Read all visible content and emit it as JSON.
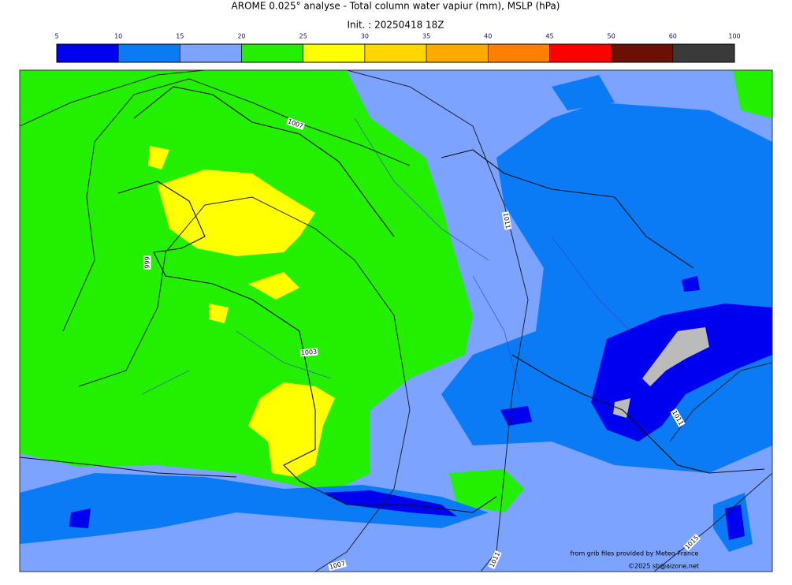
{
  "header": {
    "title": "AROME 0.025° analyse - Total column water vapiur (mm), MSLP (hPa)",
    "init": "Init. : 20250418 18Z"
  },
  "colorbar": {
    "ticks": [
      5,
      10,
      15,
      20,
      25,
      30,
      35,
      40,
      45,
      50,
      60,
      100
    ],
    "colors": [
      "#0000f0",
      "#0a7af5",
      "#7ba3ff",
      "#22f000",
      "#ffff00",
      "#ffd700",
      "#ffaa00",
      "#ff7f00",
      "#ff0000",
      "#6b1005",
      "#3a3a3a"
    ]
  },
  "isobar_labels": [
    "1007",
    "1011",
    "999",
    "1003",
    "1011",
    "1015",
    "1011",
    "1007"
  ],
  "credits": [
    "from grib files provided by Meteo-France",
    "©2025 sb@aizone.net"
  ]
}
